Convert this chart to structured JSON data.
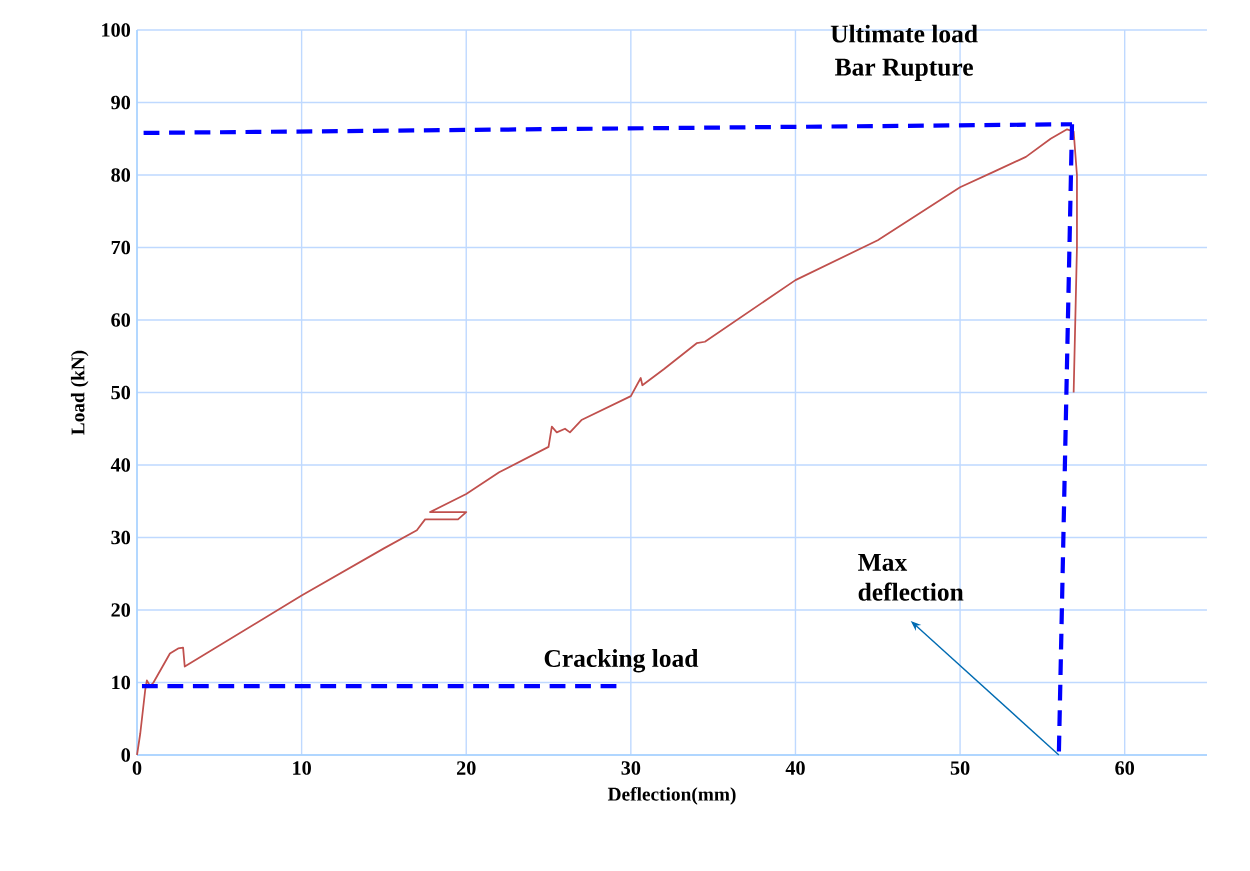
{
  "chart_data": {
    "type": "line",
    "xlabel": "Deflection(mm)",
    "ylabel": "Load (kN)",
    "xlim": [
      0,
      65
    ],
    "ylim": [
      0,
      100
    ],
    "xticks": [
      0,
      10,
      20,
      30,
      40,
      50,
      60
    ],
    "yticks": [
      0,
      10,
      20,
      30,
      40,
      50,
      60,
      70,
      80,
      90,
      100
    ],
    "grid": true,
    "marker": "none",
    "series": [
      {
        "color": "#c0504d",
        "line_style": "solid",
        "x": [
          0,
          0.2,
          0.5,
          0.6,
          0.8,
          1.0,
          1.5,
          2.0,
          2.5,
          2.8,
          2.9,
          10,
          15,
          17,
          17.5,
          19.5,
          20,
          17.8,
          20,
          22,
          25,
          25.2,
          25.5,
          26,
          26.3,
          27,
          30,
          30.6,
          30.7,
          32,
          34,
          34.5,
          40,
          45,
          50,
          52,
          54,
          55.5,
          56.5,
          56.9,
          57.1,
          57.1,
          57.0,
          56.9
        ],
        "values": [
          0,
          3,
          9,
          10.3,
          9.5,
          10,
          12,
          14,
          14.7,
          14.8,
          12.2,
          22,
          28.5,
          31,
          32.5,
          32.5,
          33.5,
          33.5,
          36,
          39,
          42.5,
          45.3,
          44.5,
          45,
          44.5,
          46.2,
          49.5,
          52,
          51,
          53.2,
          56.8,
          57,
          65.5,
          71,
          78.3,
          80.4,
          82.5,
          85,
          86.3,
          86,
          80,
          70,
          60,
          50
        ]
      },
      {
        "color": "#0000ff",
        "line_style": "dashed",
        "x": [
          0.4,
          56.8
        ],
        "values": [
          85.8,
          87
        ]
      },
      {
        "color": "#0000ff",
        "line_style": "dashed",
        "x": [
          56.8,
          56
        ],
        "values": [
          87,
          0
        ]
      },
      {
        "color": "#0000ff",
        "line_style": "dashed",
        "x": [
          0.3,
          29.5
        ],
        "values": [
          9.5,
          9.5
        ]
      }
    ],
    "annotations": [
      "Ultimate load",
      "Bar Rupture",
      {
        "text": "Max deflection",
        "x": 56,
        "y": 0
      },
      "Cracking load"
    ]
  }
}
